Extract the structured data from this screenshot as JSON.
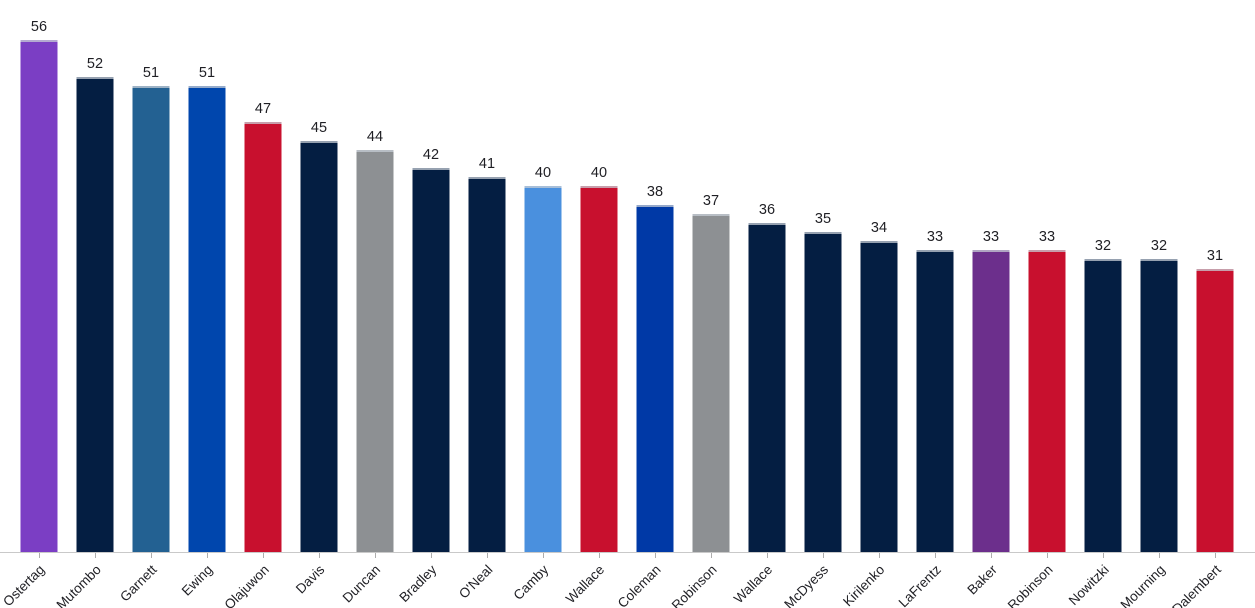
{
  "chart_data": {
    "type": "bar",
    "title": "",
    "xlabel": "",
    "ylabel": "",
    "categories": [
      "Ostertag",
      "Mutombo",
      "Garnett",
      "Ewing",
      "Olajuwon",
      "Davis",
      "Duncan",
      "Bradley",
      "O'Neal",
      "Camby",
      "Wallace",
      "Coleman",
      "Robinson",
      "Wallace",
      "McDyess",
      "Kirilenko",
      "LaFrentz",
      "Baker",
      "Robinson",
      "Nowitzki",
      "Mourning",
      "Dalembert"
    ],
    "values": [
      56,
      52,
      51,
      51,
      47,
      45,
      44,
      42,
      41,
      40,
      40,
      38,
      37,
      36,
      35,
      34,
      33,
      33,
      33,
      32,
      32,
      31
    ],
    "bar_colors": [
      "#7B3EC4",
      "#041E42",
      "#236192",
      "#0046AD",
      "#C8102E",
      "#041E42",
      "#8D9093",
      "#041E42",
      "#041E42",
      "#4A90DE",
      "#C8102E",
      "#0039A6",
      "#8D9093",
      "#041E42",
      "#041E42",
      "#041E42",
      "#041E42",
      "#6C2F8C",
      "#C8102E",
      "#041E42",
      "#041E42",
      "#C8102E"
    ],
    "ylim": [
      0,
      58
    ],
    "grid": "off",
    "legend": "none",
    "value_labels": "above bars",
    "x_tick_rotation_deg": -45,
    "axis_line_color": "#C9C9C9",
    "tick_color": "#ADADAD",
    "text_color": "#1F1F24",
    "background": "#FFFFFF"
  }
}
